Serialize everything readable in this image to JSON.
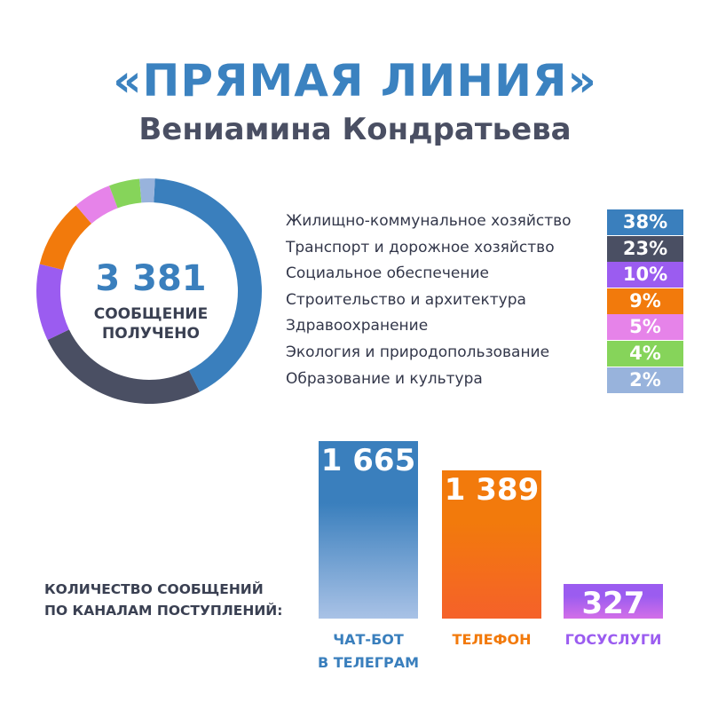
{
  "title": "«ПРЯМАЯ ЛИНИЯ»",
  "subtitle": "Вениамина Кондратьева",
  "total": {
    "value": "3 381",
    "caption_line1": "СООБЩЕНИЕ",
    "caption_line2": "ПОЛУЧЕНО"
  },
  "colors": {
    "accent": "#3b82c0",
    "dark_text": "#3a4052"
  },
  "chart_data": [
    {
      "type": "pie",
      "categories": [
        "Жилищно-коммунальное хозяйство",
        "Транспорт и дорожное хозяйство",
        "Социальное обеспечение",
        "Строительство и архитектура",
        "Здравоохранение",
        "Экология и природопользование",
        "Образование и культура"
      ],
      "values": [
        38,
        23,
        10,
        9,
        5,
        4,
        2
      ],
      "labels": [
        "38%",
        "23%",
        "10%",
        "9%",
        "5%",
        "4%",
        "2%"
      ],
      "colors": [
        "#3a7fbd",
        "#4a4f63",
        "#9b5cf0",
        "#f27a0c",
        "#e683e9",
        "#86d45a",
        "#98b3dc"
      ],
      "legend": "right",
      "unit": "%"
    },
    {
      "type": "bar",
      "title_line1": "КОЛИЧЕСТВО СООБЩЕНИЙ",
      "title_line2": "ПО КАНАЛАМ ПОСТУПЛЕНИЙ:",
      "categories": [
        {
          "line1": "ЧАТ-БОТ",
          "line2": "В ТЕЛЕГРАМ"
        },
        {
          "line1": "ТЕЛЕФОН",
          "line2": ""
        },
        {
          "line1": "ГОСУСЛУГИ",
          "line2": ""
        }
      ],
      "values": [
        1665,
        1389,
        327
      ],
      "value_labels": [
        "1 665",
        "1 389",
        "327"
      ],
      "colors_top": [
        "#3a7fbd",
        "#f27a0c",
        "#9b5cf0"
      ],
      "colors_bottom": [
        "#a9c2e6",
        "#f5612a",
        "#d36ee8"
      ],
      "label_colors": [
        "#3a7fbd",
        "#f27a0c",
        "#9b5cf0"
      ]
    }
  ]
}
